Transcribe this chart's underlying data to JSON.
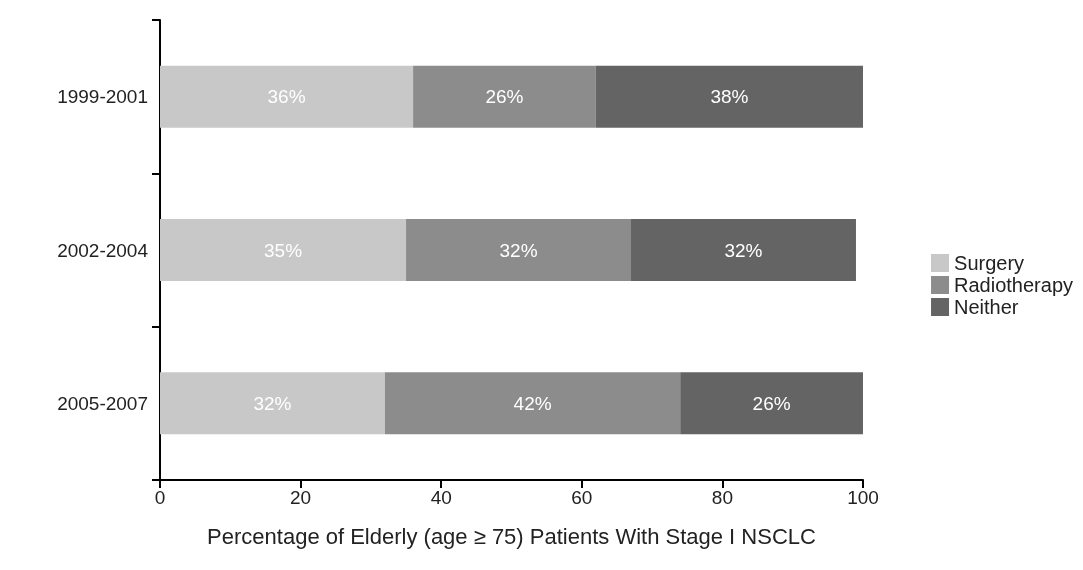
{
  "chart_data": {
    "type": "bar",
    "orientation": "horizontal",
    "stacked": true,
    "categories": [
      "1999-2001",
      "2002-2004",
      "2005-2007"
    ],
    "series": [
      {
        "name": "Surgery",
        "color": "#c8c8c8",
        "values": [
          36,
          35,
          32
        ],
        "value_labels": [
          "36%",
          "35%",
          "32%"
        ]
      },
      {
        "name": "Radiotherapy",
        "color": "#8c8c8c",
        "values": [
          26,
          32,
          42
        ],
        "value_labels": [
          "26%",
          "32%",
          "42%"
        ]
      },
      {
        "name": "Neither",
        "color": "#646464",
        "values": [
          38,
          32,
          26
        ],
        "value_labels": [
          "38%",
          "32%",
          "26%"
        ]
      }
    ],
    "xlabel": "Percentage of Elderly (age ≥ 75) Patients With Stage I NSCLC",
    "xlim": [
      0,
      100
    ],
    "xticks": [
      0,
      20,
      40,
      60,
      80,
      100
    ],
    "legend": "right",
    "grid": false
  }
}
